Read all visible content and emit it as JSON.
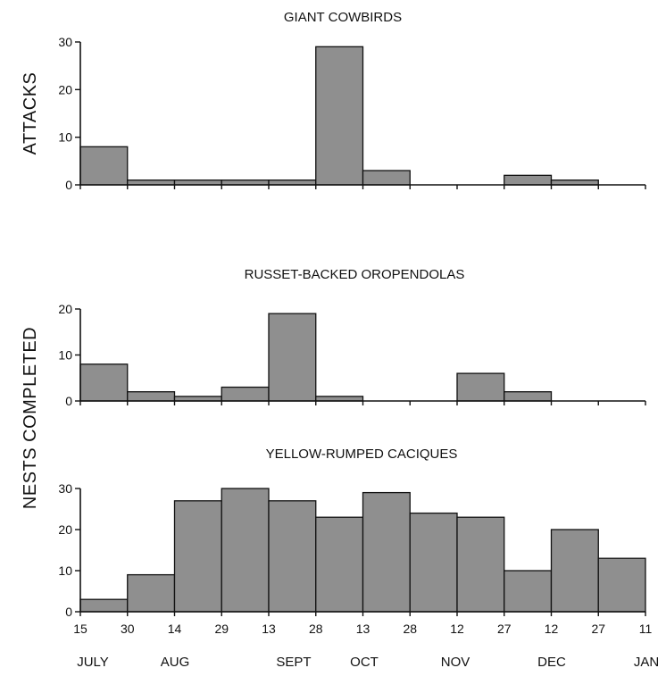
{
  "chart_data": {
    "type": "bar",
    "x_tick_labels": [
      "15",
      "30",
      "14",
      "29",
      "13",
      "28",
      "13",
      "28",
      "12",
      "27",
      "12",
      "27",
      "11"
    ],
    "x_month_labels": [
      "JULY",
      "AUG",
      "SEPT",
      "OCT",
      "NOV",
      "DEC",
      "JAN"
    ],
    "ylabels": {
      "attacks": "ATTACKS",
      "nests": "NESTS COMPLETED"
    },
    "bar_color": "#8f8f8f",
    "panels": [
      {
        "id": "giant-cowbirds",
        "title": "GIANT COWBIRDS",
        "ylim": [
          0,
          30
        ],
        "yticks": [
          0,
          10,
          20,
          30
        ],
        "values": [
          8,
          1,
          1,
          1,
          1,
          29,
          3,
          0,
          0,
          2,
          1,
          0
        ]
      },
      {
        "id": "russet-backed-oropendolas",
        "title": "RUSSET-BACKED OROPENDOLAS",
        "ylim": [
          0,
          20
        ],
        "yticks": [
          0,
          10,
          20
        ],
        "values": [
          8,
          2,
          1,
          3,
          19,
          1,
          0,
          0,
          6,
          2,
          0,
          0
        ]
      },
      {
        "id": "yellow-rumped-caciques",
        "title": "YELLOW-RUMPED CACIQUES",
        "ylim": [
          0,
          30
        ],
        "yticks": [
          0,
          10,
          20,
          30
        ],
        "values": [
          3,
          9,
          27,
          30,
          27,
          23,
          29,
          24,
          23,
          10,
          20,
          13
        ]
      }
    ]
  }
}
